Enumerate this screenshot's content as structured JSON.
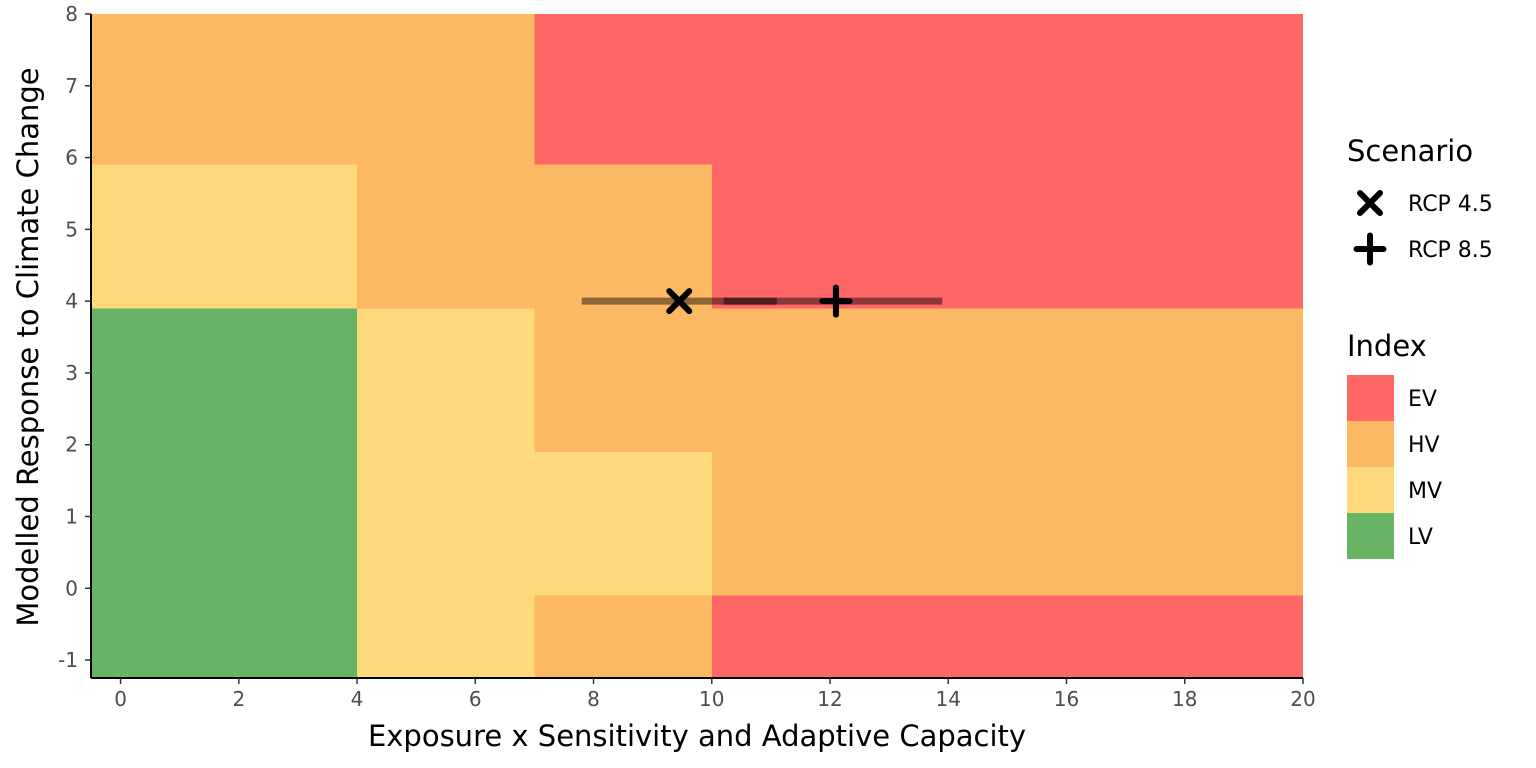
{
  "chart_data": {
    "type": "heatmap",
    "xlabel": "Exposure x Sensitivity and Adaptive Capacity",
    "ylabel": "Modelled Response to Climate Change",
    "xlim": [
      -0.5,
      20
    ],
    "ylim": [
      -1.25,
      8
    ],
    "x_ticks": [
      "0",
      "2",
      "4",
      "6",
      "8",
      "10",
      "12",
      "14",
      "16",
      "18",
      "20"
    ],
    "y_ticks": [
      "-1",
      "0",
      "1",
      "2",
      "3",
      "4",
      "5",
      "6",
      "7",
      "8"
    ],
    "grid": false,
    "legend_position": "right",
    "index_colors": {
      "EV": "#ff6666",
      "HV": "#fdb863",
      "MV": "#fdd97b",
      "LV": "#69b364"
    },
    "regions": [
      {
        "x0": -0.5,
        "x1": 4,
        "y0": -1.25,
        "y1": 3.9,
        "index": "LV"
      },
      {
        "x0": -0.5,
        "x1": 4,
        "y0": 3.9,
        "y1": 5.9,
        "index": "MV"
      },
      {
        "x0": -0.5,
        "x1": 7,
        "y0": 5.9,
        "y1": 8,
        "index": "HV"
      },
      {
        "x0": 4,
        "x1": 7,
        "y0": -1.25,
        "y1": 3.9,
        "index": "MV"
      },
      {
        "x0": 4,
        "x1": 7,
        "y0": 3.9,
        "y1": 5.9,
        "index": "HV"
      },
      {
        "x0": 7,
        "x1": 10,
        "y0": -1.25,
        "y1": -0.1,
        "index": "HV"
      },
      {
        "x0": 7,
        "x1": 10,
        "y0": -0.1,
        "y1": 1.9,
        "index": "MV"
      },
      {
        "x0": 7,
        "x1": 10,
        "y0": 1.9,
        "y1": 5.9,
        "index": "HV"
      },
      {
        "x0": 7,
        "x1": 20,
        "y0": 5.9,
        "y1": 8,
        "index": "EV"
      },
      {
        "x0": 10,
        "x1": 20,
        "y0": 3.9,
        "y1": 5.9,
        "index": "EV"
      },
      {
        "x0": 10,
        "x1": 20,
        "y0": -0.1,
        "y1": 3.9,
        "index": "HV"
      },
      {
        "x0": 10,
        "x1": 20,
        "y0": -1.25,
        "y1": -0.1,
        "index": "EV"
      }
    ],
    "scenarios": [
      {
        "name": "RCP 4.5",
        "shape": "x",
        "x": 9.45,
        "y": 4,
        "range": [
          7.8,
          11.1
        ]
      },
      {
        "name": "RCP 8.5",
        "shape": "plus",
        "x": 12.1,
        "y": 4,
        "range": [
          10.2,
          13.9
        ]
      }
    ],
    "legend": {
      "scenario_title": "Scenario",
      "index_title": "Index",
      "index_items": [
        "EV",
        "HV",
        "MV",
        "LV"
      ]
    }
  }
}
